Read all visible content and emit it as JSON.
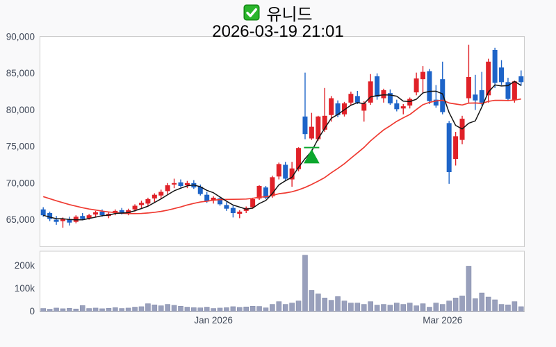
{
  "header": {
    "title": "유니드",
    "checkbox_icon": "green-checked-box",
    "datetime": "2026-03-19 21:01"
  },
  "colors": {
    "background": "#f9f9fa",
    "plot_background": "#ffffff",
    "plot_border": "#cccccc",
    "axis_line": "#999999",
    "axis_label": "#3e4757",
    "up_candle": "#e02128",
    "down_candle": "#1d64c8",
    "volume_bar": "#99a0bc",
    "volume_bar_edge": "#848cab",
    "ma_short": "#141414",
    "ma_long": "#ef3a31",
    "marker_green": "#0ca72e",
    "checkbox_green": "#2bb62c",
    "checkbox_border": "#118411"
  },
  "chart_data": {
    "type": "candlestick",
    "title": "유니드",
    "subtitle": "2026-03-19 21:01",
    "legend_position": "none",
    "grid": false,
    "y_axis": {
      "range": [
        61300,
        90000
      ],
      "ticks": [
        {
          "value": 65000,
          "label": "65,000"
        },
        {
          "value": 70000,
          "label": "70,000"
        },
        {
          "value": 75000,
          "label": "75,000"
        },
        {
          "value": 80000,
          "label": "80,000"
        },
        {
          "value": 85000,
          "label": "85,000"
        },
        {
          "value": 90000,
          "label": "90,000"
        }
      ]
    },
    "volume_axis": {
      "range": [
        0,
        262000
      ],
      "ticks": [
        {
          "value": 0,
          "label": "0"
        },
        {
          "value": 100000,
          "label": "100k"
        },
        {
          "value": 200000,
          "label": "200k"
        }
      ]
    },
    "x_axis": {
      "ticks": [
        {
          "index": 27,
          "label": "Jan 2026"
        },
        {
          "index": 62,
          "label": "Mar 2026"
        }
      ]
    },
    "ma_short_period": 5,
    "ma_long_period": 20,
    "ma_long_seed_closes": [
      70800,
      70500,
      70200,
      69900,
      69600,
      69400,
      69100,
      68800,
      68500,
      68200,
      67900,
      67600,
      67300,
      67000,
      66800,
      66600,
      66500,
      66400,
      66300
    ],
    "marker": {
      "type": "buy-triangle-up",
      "candle_index": 42,
      "line_price": 74850,
      "apex_price": 74550,
      "base_price": 72750
    },
    "candles_format": [
      "open",
      "high",
      "low",
      "close",
      "volume"
    ],
    "candles": [
      [
        66400,
        66700,
        65400,
        65600,
        12000
      ],
      [
        65900,
        66100,
        64800,
        65100,
        9000
      ],
      [
        65000,
        65500,
        64300,
        64700,
        14000
      ],
      [
        64800,
        65300,
        63900,
        65100,
        11000
      ],
      [
        65000,
        65400,
        64200,
        64600,
        13000
      ],
      [
        64700,
        65600,
        64500,
        65400,
        10000
      ],
      [
        65500,
        65900,
        64900,
        65100,
        25000
      ],
      [
        65200,
        65800,
        65000,
        65600,
        12000
      ],
      [
        65700,
        66200,
        65300,
        66000,
        14000
      ],
      [
        66100,
        66400,
        65400,
        65600,
        11000
      ],
      [
        65500,
        66000,
        65200,
        65800,
        13000
      ],
      [
        65900,
        66400,
        65600,
        66200,
        16000
      ],
      [
        66300,
        66600,
        65700,
        65900,
        12000
      ],
      [
        65900,
        66500,
        65600,
        66300,
        14000
      ],
      [
        66400,
        67100,
        66100,
        66900,
        18000
      ],
      [
        67000,
        67600,
        66600,
        67300,
        20000
      ],
      [
        67200,
        68000,
        66900,
        67800,
        33000
      ],
      [
        67900,
        68600,
        67400,
        68400,
        28000
      ],
      [
        68300,
        69100,
        67900,
        68800,
        24000
      ],
      [
        68900,
        70000,
        68500,
        69700,
        30000
      ],
      [
        69800,
        70600,
        69300,
        70000,
        26000
      ],
      [
        70100,
        70500,
        69400,
        69600,
        22000
      ],
      [
        69700,
        70300,
        69300,
        70000,
        18000
      ],
      [
        70000,
        70400,
        69200,
        69400,
        16000
      ],
      [
        69500,
        69800,
        68300,
        68500,
        15000
      ],
      [
        68400,
        68800,
        67300,
        67500,
        18000
      ],
      [
        67600,
        68200,
        67200,
        68000,
        12000
      ],
      [
        67900,
        68100,
        66900,
        67100,
        14000
      ],
      [
        67000,
        67400,
        66200,
        66500,
        16000
      ],
      [
        66600,
        66900,
        65300,
        65900,
        20000
      ],
      [
        65800,
        66300,
        65200,
        66100,
        17000
      ],
      [
        66200,
        66800,
        65900,
        66600,
        19000
      ],
      [
        66700,
        68000,
        66500,
        67800,
        22000
      ],
      [
        67900,
        69700,
        67700,
        69600,
        21000
      ],
      [
        69400,
        69600,
        67800,
        68000,
        15000
      ],
      [
        68200,
        71000,
        68000,
        70800,
        30000
      ],
      [
        70900,
        72800,
        70500,
        72600,
        42000
      ],
      [
        72500,
        72900,
        70400,
        70600,
        30000
      ],
      [
        70500,
        72900,
        69500,
        72000,
        36000
      ],
      [
        71900,
        74900,
        71600,
        74800,
        45000
      ],
      [
        79100,
        85100,
        76000,
        76700,
        245000
      ],
      [
        76100,
        79600,
        75900,
        77700,
        91000
      ],
      [
        76000,
        79200,
        75800,
        79100,
        76000
      ],
      [
        77300,
        83000,
        77000,
        79200,
        58000
      ],
      [
        79300,
        81900,
        78400,
        81600,
        48000
      ],
      [
        80900,
        81300,
        79000,
        79300,
        64000
      ],
      [
        79400,
        81100,
        79100,
        80900,
        45000
      ],
      [
        81000,
        82500,
        80600,
        82200,
        36000
      ],
      [
        81900,
        82600,
        80800,
        81000,
        36000
      ],
      [
        79900,
        81200,
        78400,
        80900,
        30000
      ],
      [
        81000,
        84900,
        80700,
        83900,
        42000
      ],
      [
        84600,
        85000,
        81400,
        81800,
        27000
      ],
      [
        81600,
        82900,
        81000,
        82700,
        30000
      ],
      [
        82300,
        82800,
        80700,
        80900,
        27000
      ],
      [
        80900,
        81400,
        79800,
        80100,
        36000
      ],
      [
        80200,
        80800,
        79400,
        80500,
        30000
      ],
      [
        80600,
        81700,
        80200,
        81500,
        36000
      ],
      [
        82400,
        85100,
        82000,
        84300,
        24000
      ],
      [
        84200,
        86000,
        82300,
        85200,
        33000
      ],
      [
        85300,
        85600,
        80800,
        81200,
        18000
      ],
      [
        81400,
        83400,
        80300,
        80600,
        36000
      ],
      [
        84200,
        86600,
        79400,
        79700,
        30000
      ],
      [
        78200,
        78500,
        69900,
        71500,
        45000
      ],
      [
        73300,
        77000,
        72400,
        76400,
        58000
      ],
      [
        75900,
        79200,
        75300,
        78800,
        67000
      ],
      [
        81600,
        88900,
        80900,
        84500,
        197000
      ],
      [
        82100,
        84800,
        80000,
        81300,
        55000
      ],
      [
        82700,
        85200,
        80600,
        81000,
        80000
      ],
      [
        82000,
        87000,
        81000,
        86600,
        62000
      ],
      [
        88200,
        88500,
        83000,
        83700,
        50000
      ],
      [
        85800,
        86800,
        83400,
        83800,
        30000
      ],
      [
        83800,
        84400,
        81200,
        81500,
        28000
      ],
      [
        81400,
        84000,
        81000,
        83900,
        42000
      ],
      [
        84600,
        85400,
        83300,
        83800,
        20000
      ]
    ]
  }
}
